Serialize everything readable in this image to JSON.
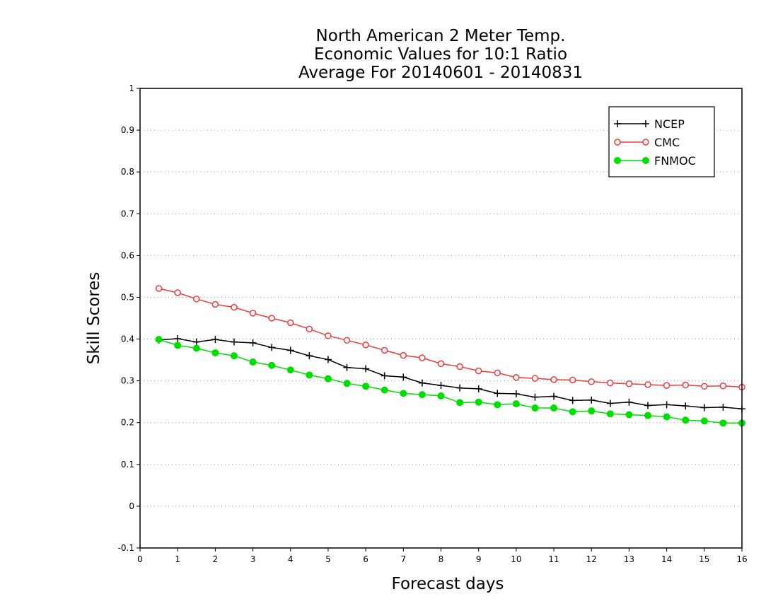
{
  "chart_data": {
    "type": "line",
    "title": [
      "North American 2 Meter Temp.",
      "Economic Values for 10:1 Ratio",
      "Average For 20140601 - 20140831"
    ],
    "xlabel": "Forecast days",
    "ylabel": "Skill Scores",
    "xlim": [
      0,
      16
    ],
    "ylim": [
      -0.1,
      1
    ],
    "xticks": [
      "0",
      "1",
      "2",
      "3",
      "4",
      "5",
      "6",
      "7",
      "8",
      "9",
      "10",
      "11",
      "12",
      "13",
      "14",
      "15",
      "16"
    ],
    "yticks": [
      "-0.1",
      "0",
      "0.1",
      "0.2",
      "0.3",
      "0.4",
      "0.5",
      "0.6",
      "0.7",
      "0.8",
      "0.9",
      "1"
    ],
    "grid": "horizontal dotted",
    "legend_position": "top-right",
    "x": [
      0.5,
      1,
      1.5,
      2,
      2.5,
      3,
      3.5,
      4,
      4.5,
      5,
      5.5,
      6,
      6.5,
      7,
      7.5,
      8,
      8.5,
      9,
      9.5,
      10,
      10.5,
      11,
      11.5,
      12,
      12.5,
      13,
      13.5,
      14,
      14.5,
      15,
      15.5,
      16
    ],
    "series": [
      {
        "name": "NCEP",
        "color": "#000000",
        "marker": "plus",
        "values": [
          0.398,
          0.401,
          0.393,
          0.399,
          0.393,
          0.391,
          0.38,
          0.373,
          0.36,
          0.351,
          0.332,
          0.329,
          0.312,
          0.309,
          0.295,
          0.289,
          0.283,
          0.281,
          0.27,
          0.269,
          0.261,
          0.263,
          0.253,
          0.254,
          0.246,
          0.249,
          0.241,
          0.243,
          0.24,
          0.236,
          0.237,
          0.233
        ]
      },
      {
        "name": "CMC",
        "color": "#ee3b3b",
        "marker": "open-circle",
        "values": [
          0.521,
          0.511,
          0.496,
          0.483,
          0.476,
          0.462,
          0.45,
          0.439,
          0.424,
          0.408,
          0.397,
          0.386,
          0.373,
          0.361,
          0.355,
          0.341,
          0.334,
          0.324,
          0.319,
          0.308,
          0.306,
          0.303,
          0.302,
          0.298,
          0.295,
          0.293,
          0.291,
          0.289,
          0.29,
          0.287,
          0.288,
          0.285
        ]
      },
      {
        "name": "FNMOC",
        "color": "#00dd00",
        "marker": "filled-circle",
        "values": [
          0.399,
          0.385,
          0.378,
          0.367,
          0.36,
          0.345,
          0.337,
          0.326,
          0.314,
          0.305,
          0.294,
          0.287,
          0.278,
          0.27,
          0.267,
          0.264,
          0.248,
          0.249,
          0.243,
          0.245,
          0.235,
          0.235,
          0.226,
          0.228,
          0.221,
          0.219,
          0.217,
          0.214,
          0.206,
          0.204,
          0.199,
          0.199
        ]
      }
    ]
  }
}
